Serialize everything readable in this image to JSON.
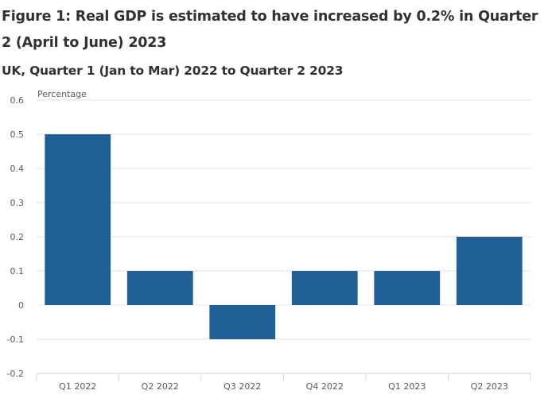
{
  "figure": {
    "title": "Figure 1: Real GDP is estimated to have increased by 0.2% in Quarter 2 (April to June) 2023",
    "subtitle": "UK, Quarter 1 (Jan to Mar) 2022 to Quarter 2 2023"
  },
  "colors": {
    "bar": "#206095",
    "grid": "#e0e0e0",
    "axis": "#ccd6eb"
  },
  "chart_data": {
    "type": "bar",
    "title": "Figure 1: Real GDP is estimated to have increased by 0.2% in Quarter 2 (April to June) 2023",
    "subtitle": "UK, Quarter 1 (Jan to Mar) 2022 to Quarter 2 2023",
    "xlabel": "",
    "ylabel": "Percentage",
    "categories": [
      "Q1 2022",
      "Q2 2022",
      "Q3 2022",
      "Q4 2022",
      "Q1 2023",
      "Q2 2023"
    ],
    "values": [
      0.5,
      0.1,
      -0.1,
      0.1,
      0.1,
      0.2
    ],
    "ylim": [
      -0.2,
      0.6
    ],
    "yticks": [
      0.6,
      0.5,
      0.4,
      0.3,
      0.2,
      0.1,
      0,
      -0.1,
      -0.2
    ],
    "ytick_labels": [
      "0.6",
      "0.5",
      "0.4",
      "0.3",
      "0.2",
      "0.1",
      "0",
      "-0.1",
      "-0.2"
    ],
    "grid": true,
    "legend": "none"
  }
}
